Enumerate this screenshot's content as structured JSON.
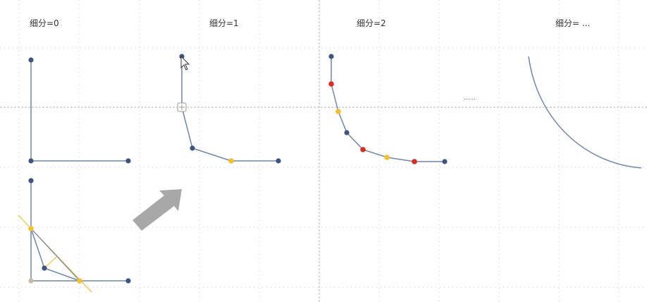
{
  "panels": [
    {
      "label": "细分=0"
    },
    {
      "label": "细分=1"
    },
    {
      "label": "细分=2"
    },
    {
      "label": "细分= ..."
    }
  ],
  "ellipsis": "......",
  "colors": {
    "background": "#ffffff",
    "grid": "#c8c8c8",
    "divider": "#b4b4b4",
    "line": "#6f86ad",
    "control_point": "#3b5580",
    "midpoint_yellow": "#f5c02a",
    "point_red": "#e02a1e",
    "construction_line": "#f2c94c",
    "origin_point": "#c8b9a6",
    "arrow": "#a8a8a8"
  },
  "icons": {
    "cursor": "mouse-cursor-icon",
    "move": "move-handle-icon",
    "arrow": "progress-arrow-icon"
  }
}
